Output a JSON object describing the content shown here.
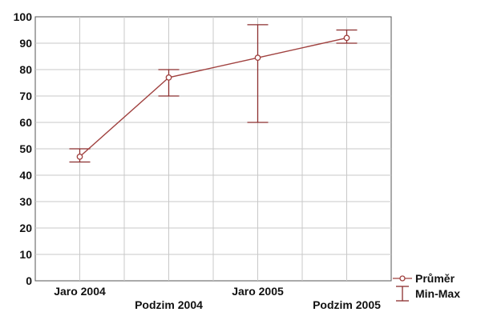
{
  "chart_data": {
    "type": "line",
    "title": "",
    "xlabel": "",
    "ylabel": "",
    "categories": [
      "Jaro 2004",
      "Podzim 2004",
      "Jaro 2005",
      "Podzim 2005"
    ],
    "ylim": [
      0,
      100
    ],
    "yticks": [
      0,
      10,
      20,
      30,
      40,
      50,
      60,
      70,
      80,
      90,
      100
    ],
    "grid": true,
    "legend_position": "bottom-right",
    "series": [
      {
        "name": "Průměr",
        "values": [
          47,
          77,
          84.5,
          92
        ],
        "marker": "open-circle",
        "color": "#a0413f"
      }
    ],
    "error_bars": {
      "name": "Min-Max",
      "min": [
        45,
        70,
        60,
        90
      ],
      "max": [
        50,
        80,
        97,
        95
      ],
      "color": "#8b2e2e"
    }
  }
}
